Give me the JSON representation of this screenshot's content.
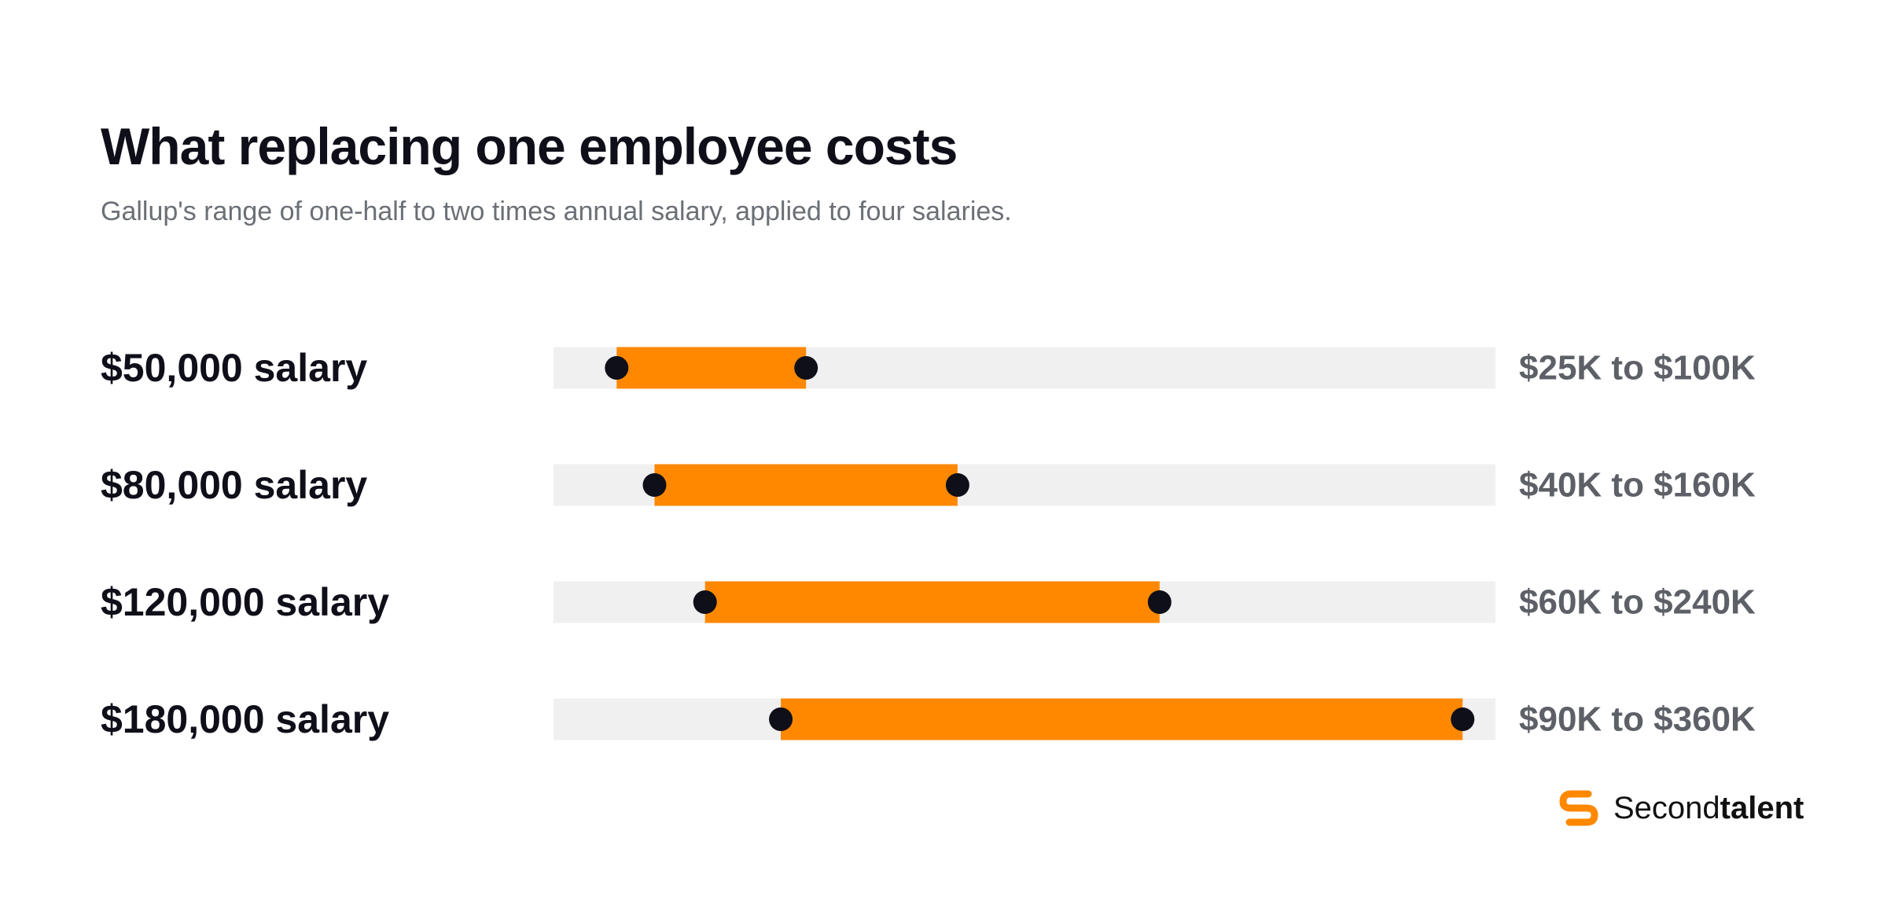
{
  "header": {
    "title": "What replacing one employee costs",
    "subtitle": "Gallup's range of one-half to two times annual salary, applied to four salaries."
  },
  "brand": {
    "name_light": "Second",
    "name_bold": "talent",
    "logo_icon": "secondtalent-s-logo-icon",
    "color": "#FF8800"
  },
  "colors": {
    "bar": "#FF8800",
    "track": "#EFF0EF",
    "dot": "#0F0F1A"
  },
  "chart_data": {
    "type": "range-bar",
    "title": "What replacing one employee costs",
    "subtitle": "Gallup's range of one-half to two times annual salary, applied to four salaries.",
    "xlim": [
      0,
      373000
    ],
    "grid": false,
    "categories": [
      "$50,000 salary",
      "$80,000 salary",
      "$120,000 salary",
      "$180,000 salary"
    ],
    "series": [
      {
        "salary": 50000,
        "low": 25000,
        "high": 100000,
        "label": "$25K to $100K"
      },
      {
        "salary": 80000,
        "low": 40000,
        "high": 160000,
        "label": "$40K to $160K"
      },
      {
        "salary": 120000,
        "low": 60000,
        "high": 240000,
        "label": "$60K to $240K"
      },
      {
        "salary": 180000,
        "low": 90000,
        "high": 360000,
        "label": "$90K to $360K"
      }
    ]
  }
}
